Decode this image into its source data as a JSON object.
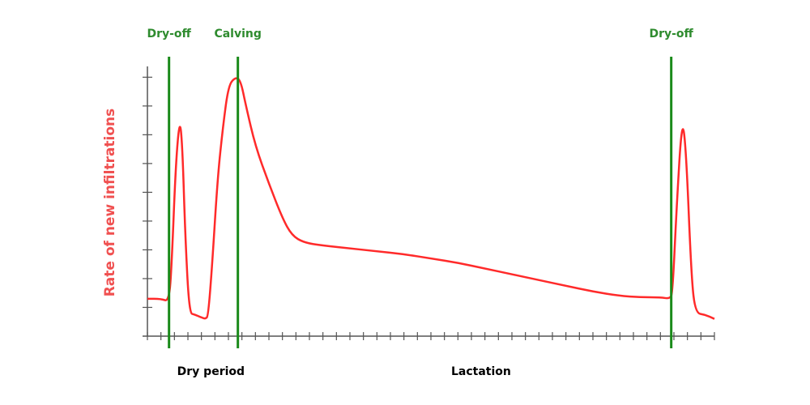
{
  "colors": {
    "curve": "#ff2a2a",
    "marker_line": "#1a8a1a",
    "marker_label": "#2e8b2e",
    "axis": "#555555",
    "ylabel": "#f05050",
    "period_label": "#000000"
  },
  "chart_data": {
    "type": "line",
    "title": "",
    "ylabel": "Rate of new infiltrations",
    "xlabel": "",
    "grid": false,
    "xlim": [
      0,
      42
    ],
    "ylim": [
      0,
      9
    ],
    "y_ticks": [
      1,
      2,
      3,
      4,
      5,
      6,
      7,
      8,
      9
    ],
    "x_tick_step": 1,
    "events": [
      {
        "label": "Dry-off",
        "x": 1.6
      },
      {
        "label": "Calving",
        "x": 6.7
      },
      {
        "label": "Dry-off",
        "x": 38.8
      }
    ],
    "period_labels": [
      {
        "label": "Dry period",
        "x": 2.2
      },
      {
        "label": "Lactation",
        "x": 22.5
      }
    ],
    "series": [
      {
        "values": [
          [
            0,
            1.3
          ],
          [
            1.0,
            1.3
          ],
          [
            1.6,
            1.2
          ],
          [
            1.8,
            2.5
          ],
          [
            2.1,
            6.0
          ],
          [
            2.4,
            7.6
          ],
          [
            2.6,
            6.5
          ],
          [
            2.8,
            3.5
          ],
          [
            3.1,
            0.8
          ],
          [
            3.5,
            0.75
          ],
          [
            4.0,
            0.65
          ],
          [
            4.3,
            0.6
          ],
          [
            4.5,
            0.7
          ],
          [
            4.8,
            2.5
          ],
          [
            5.2,
            5.5
          ],
          [
            5.6,
            7.3
          ],
          [
            6.0,
            8.7
          ],
          [
            6.5,
            9.0
          ],
          [
            6.9,
            8.9
          ],
          [
            7.3,
            8.0
          ],
          [
            8.0,
            6.6
          ],
          [
            9.0,
            5.3
          ],
          [
            10.0,
            4.1
          ],
          [
            10.7,
            3.5
          ],
          [
            11.6,
            3.25
          ],
          [
            13.0,
            3.15
          ],
          [
            15.0,
            3.05
          ],
          [
            17.0,
            2.95
          ],
          [
            19.0,
            2.85
          ],
          [
            21.0,
            2.7
          ],
          [
            23.0,
            2.55
          ],
          [
            25.0,
            2.35
          ],
          [
            27.0,
            2.15
          ],
          [
            29.0,
            1.95
          ],
          [
            31.0,
            1.75
          ],
          [
            33.0,
            1.55
          ],
          [
            35.0,
            1.4
          ],
          [
            36.5,
            1.35
          ],
          [
            38.0,
            1.35
          ],
          [
            38.7,
            1.3
          ],
          [
            38.9,
            1.5
          ],
          [
            39.2,
            4.5
          ],
          [
            39.6,
            7.6
          ],
          [
            39.9,
            6.5
          ],
          [
            40.3,
            2.0
          ],
          [
            40.6,
            0.8
          ],
          [
            41.3,
            0.75
          ],
          [
            42.0,
            0.6
          ]
        ]
      }
    ]
  }
}
